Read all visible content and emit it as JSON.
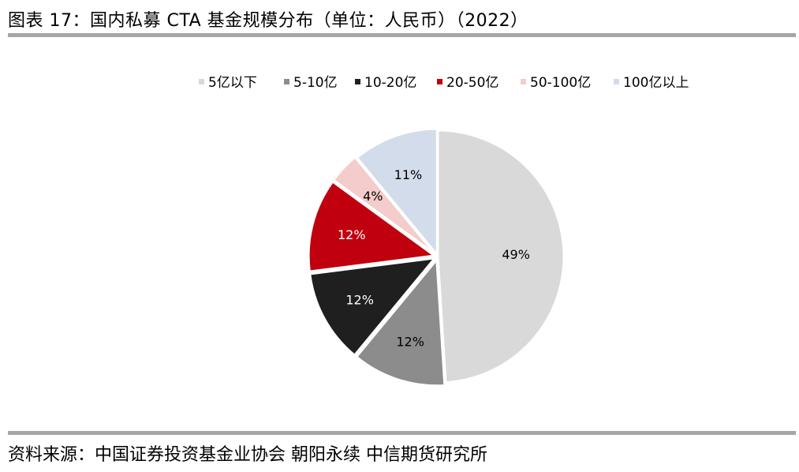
{
  "header": {
    "title": "图表 17：国内私募 CTA 基金规模分布（单位：人民币）（2022）"
  },
  "footer": {
    "source": "资料来源：中国证券投资基金业协会 朝阳永续 中信期货研究所"
  },
  "chart_data": {
    "type": "pie",
    "title": "",
    "legend_position": "top",
    "slices": [
      {
        "label": "5亿以下",
        "value": 49,
        "display": "49%",
        "color": "#d9d9d9",
        "text_color": "#000000"
      },
      {
        "label": "5-10亿",
        "value": 12,
        "display": "12%",
        "color": "#8c8c8c",
        "text_color": "#000000"
      },
      {
        "label": "10-20亿",
        "value": 12,
        "display": "12%",
        "color": "#1f1f1f",
        "text_color": "#ffffff"
      },
      {
        "label": "20-50亿",
        "value": 12,
        "display": "12%",
        "color": "#c0000e",
        "text_color": "#ffffff"
      },
      {
        "label": "50-100亿",
        "value": 4,
        "display": "4%",
        "color": "#f4cccc",
        "text_color": "#000000"
      },
      {
        "label": "100亿以上",
        "value": 11,
        "display": "11%",
        "color": "#d3dcea",
        "text_color": "#000000"
      }
    ]
  }
}
